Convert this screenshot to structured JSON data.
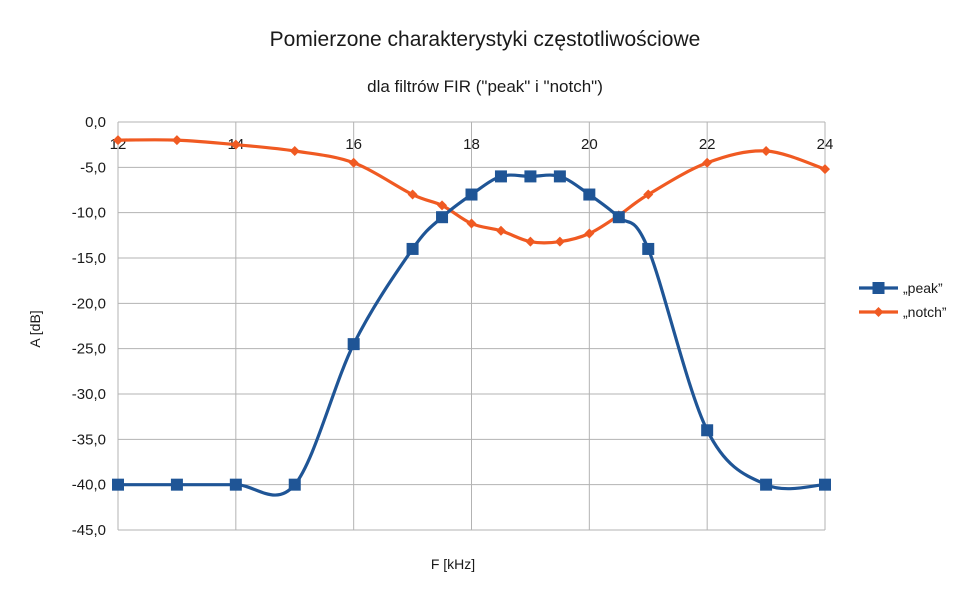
{
  "chart_data": {
    "type": "line",
    "title": "Pomierzone charakterystyki częstotliwościowe",
    "subtitle": "dla filtrów FIR (\"peak\" i \"notch\")",
    "xlabel": "F [kHz]",
    "ylabel": "A [dB]",
    "xlim": [
      12,
      24
    ],
    "ylim": [
      -45,
      0
    ],
    "x_ticks": [
      "12",
      "14",
      "16",
      "18",
      "20",
      "22",
      "24"
    ],
    "y_ticks": [
      "0,0",
      "-5,0",
      "-10,0",
      "-15,0",
      "-20,0",
      "-25,0",
      "-30,0",
      "-35,0",
      "-40,0",
      "-45,0"
    ],
    "grid": true,
    "smooth": true,
    "legend_position": "right",
    "series": [
      {
        "name": "„peak”",
        "color": "#1f5596",
        "marker": "square",
        "points": [
          [
            12,
            -40
          ],
          [
            13,
            -40
          ],
          [
            14,
            -40
          ],
          [
            15,
            -40
          ],
          [
            16,
            -24.5
          ],
          [
            17,
            -14
          ],
          [
            17.5,
            -10.5
          ],
          [
            18,
            -8
          ],
          [
            18.5,
            -6
          ],
          [
            19,
            -6
          ],
          [
            19.5,
            -6
          ],
          [
            20,
            -8
          ],
          [
            20.5,
            -10.5
          ],
          [
            21,
            -14
          ],
          [
            22,
            -34
          ],
          [
            23,
            -40
          ],
          [
            24,
            -40
          ]
        ]
      },
      {
        "name": "„notch”",
        "color": "#f05a22",
        "marker": "diamond",
        "points": [
          [
            12,
            -2
          ],
          [
            13,
            -2
          ],
          [
            14,
            -2.5
          ],
          [
            15,
            -3.2
          ],
          [
            16,
            -4.5
          ],
          [
            17,
            -8
          ],
          [
            17.5,
            -9.2
          ],
          [
            18,
            -11.2
          ],
          [
            18.5,
            -12
          ],
          [
            19,
            -13.2
          ],
          [
            19.5,
            -13.2
          ],
          [
            20,
            -12.3
          ],
          [
            20.5,
            -10.3
          ],
          [
            21,
            -8
          ],
          [
            22,
            -4.5
          ],
          [
            23,
            -3.2
          ],
          [
            24,
            -5.2
          ]
        ]
      }
    ]
  }
}
